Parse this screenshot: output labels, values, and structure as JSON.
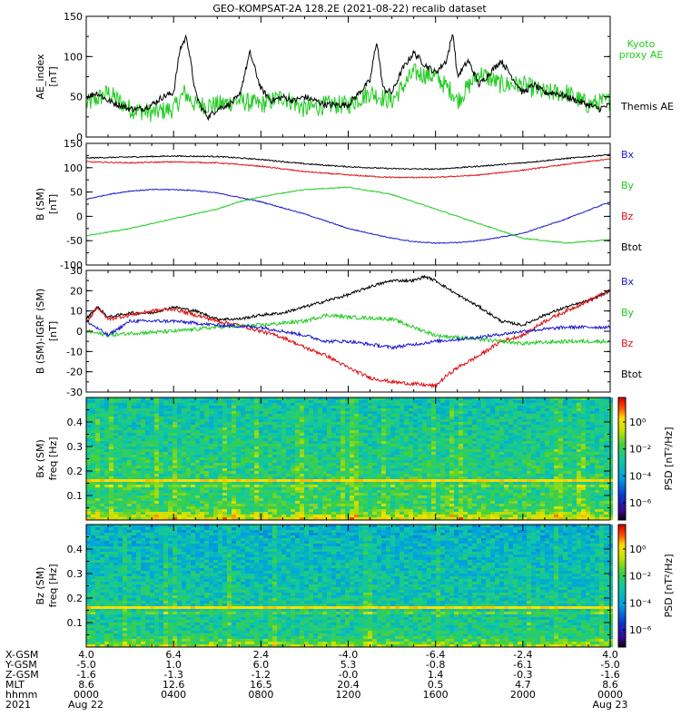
{
  "title": "GEO-KOMPSAT-2A 128.2E (2021-08-22) recalib dataset",
  "panels": {
    "ae": {
      "ylabel_lines": [
        "AE_index",
        "[nT]"
      ],
      "yticks": [
        "0",
        "50",
        "100",
        "150"
      ],
      "legend": {
        "kyoto_line1": "Kyoto",
        "kyoto_line2": "proxy AE",
        "themis": "Themis AE"
      },
      "colors": {
        "kyoto": "#22cc22",
        "themis": "#000000"
      }
    },
    "b_sm": {
      "ylabel_lines": [
        "B (SM)",
        "[nT]"
      ],
      "yticks": [
        "-100",
        "-50",
        "0",
        "50",
        "100",
        "150"
      ],
      "legend": [
        "Bx",
        "By",
        "Bz",
        "Btot"
      ],
      "colors": {
        "Bx": "#1a1acc",
        "By": "#22cc22",
        "Bz": "#dd1111",
        "Btot": "#000000"
      }
    },
    "b_igrf": {
      "ylabel_lines": [
        "B (SM)-IGRF (SM)",
        "[nT]"
      ],
      "yticks": [
        "-30",
        "-20",
        "-10",
        "0",
        "10",
        "20",
        "30"
      ],
      "legend": [
        "Bx",
        "By",
        "Bz",
        "Btot"
      ]
    },
    "spec_bx": {
      "ylabel_lines": [
        "Bx (SM)",
        "freq [Hz]"
      ],
      "yticks": [
        "0.1",
        "0.2",
        "0.3",
        "0.4"
      ],
      "cbar_label": "PSD [nT²/Hz]",
      "cbar_ticks": [
        "10⁰",
        "10⁻²",
        "10⁻⁴",
        "10⁻⁶"
      ]
    },
    "spec_bz": {
      "ylabel_lines": [
        "Bz (SM)",
        "freq [Hz]"
      ],
      "yticks": [
        "0.1",
        "0.2",
        "0.3",
        "0.4"
      ],
      "cbar_label": "PSD [nT²/Hz]",
      "cbar_ticks": [
        "10⁰",
        "10⁻²",
        "10⁻⁴",
        "10⁻⁶"
      ]
    }
  },
  "ephemeris": {
    "row_labels": [
      "X-GSM",
      "Y-GSM",
      "Z-GSM",
      "MLT",
      "hhmm",
      "2021"
    ],
    "columns": [
      [
        "4.0",
        "-5.0",
        "-1.6",
        "8.6",
        "0000",
        "Aug 22"
      ],
      [
        "6.4",
        "1.0",
        "-1.3",
        "12.6",
        "0400",
        ""
      ],
      [
        "2.4",
        "6.0",
        "-1.2",
        "16.5",
        "0800",
        ""
      ],
      [
        "-4.0",
        "5.3",
        "-0.0",
        "20.4",
        "1200",
        ""
      ],
      [
        "-6.4",
        "-0.8",
        "1.4",
        "0.5",
        "1600",
        ""
      ],
      [
        "-2.4",
        "-6.1",
        "-0.3",
        "4.7",
        "2000",
        ""
      ],
      [
        "4.0",
        "-5.0",
        "-1.6",
        "8.6",
        "0000",
        "Aug 23"
      ]
    ]
  },
  "chart_data": [
    {
      "type": "line",
      "x_unit": "hours since 2021-08-22 00:00",
      "xlim": [
        0,
        24
      ],
      "ylim": [
        0,
        150
      ],
      "series": [
        {
          "name": "Kyoto proxy AE",
          "x": [
            0,
            1,
            2,
            3,
            4,
            4.5,
            5,
            6,
            7,
            8,
            9,
            10,
            11,
            12,
            13,
            14,
            15,
            16,
            16.8,
            17,
            18,
            19,
            20,
            21,
            22,
            23,
            24
          ],
          "values": [
            40,
            55,
            35,
            30,
            35,
            55,
            40,
            40,
            45,
            40,
            50,
            35,
            40,
            40,
            55,
            45,
            80,
            75,
            55,
            45,
            80,
            65,
            65,
            55,
            55,
            40,
            45
          ]
        },
        {
          "name": "Themis AE",
          "x": [
            0,
            0.5,
            1,
            1.5,
            2,
            2.5,
            3,
            3.5,
            4,
            4.3,
            4.6,
            5,
            5.3,
            5.6,
            6,
            6.5,
            7,
            7.5,
            8,
            8.5,
            9,
            9.5,
            10,
            10.5,
            11,
            11.5,
            12,
            12.5,
            13,
            13.3,
            13.6,
            14,
            14.5,
            15,
            15.5,
            16,
            16.5,
            16.8,
            17,
            17.5,
            18,
            18.5,
            19,
            19.5,
            20,
            20.5,
            21,
            21.5,
            22,
            22.5,
            23,
            23.5,
            24
          ],
          "values": [
            50,
            55,
            45,
            40,
            35,
            35,
            40,
            50,
            55,
            110,
            125,
            55,
            35,
            25,
            35,
            40,
            50,
            105,
            60,
            45,
            50,
            45,
            50,
            45,
            40,
            40,
            40,
            55,
            70,
            120,
            60,
            55,
            85,
            105,
            90,
            80,
            95,
            130,
            75,
            95,
            65,
            80,
            95,
            75,
            55,
            65,
            55,
            55,
            50,
            45,
            40,
            35,
            40
          ]
        }
      ]
    },
    {
      "type": "line",
      "x_unit": "hours since 2021-08-22 00:00",
      "xlim": [
        0,
        24
      ],
      "ylim": [
        -100,
        150
      ],
      "series": [
        {
          "name": "Btot",
          "x": [
            0,
            2,
            4,
            6,
            8,
            10,
            12,
            14,
            16,
            18,
            20,
            22,
            24
          ],
          "values": [
            120,
            122,
            124,
            123,
            117,
            108,
            102,
            98,
            97,
            103,
            110,
            119,
            127
          ]
        },
        {
          "name": "Bz",
          "x": [
            0,
            2,
            4,
            6,
            8,
            10,
            12,
            14,
            16,
            18,
            20,
            22,
            24
          ],
          "values": [
            112,
            110,
            112,
            110,
            103,
            92,
            85,
            80,
            80,
            85,
            95,
            107,
            118
          ]
        },
        {
          "name": "Bx",
          "x": [
            0,
            1,
            2,
            3,
            4,
            5,
            6,
            8,
            10,
            12,
            14,
            15,
            16,
            17,
            18,
            20,
            22,
            24
          ],
          "values": [
            35,
            45,
            52,
            55,
            55,
            53,
            48,
            30,
            5,
            -25,
            -45,
            -52,
            -55,
            -54,
            -50,
            -35,
            -5,
            30
          ]
        },
        {
          "name": "By",
          "x": [
            0,
            2,
            4,
            6,
            7,
            8,
            9,
            10,
            12,
            14,
            16,
            18,
            20,
            22,
            24
          ],
          "values": [
            -40,
            -25,
            -5,
            15,
            30,
            40,
            48,
            55,
            60,
            45,
            15,
            -15,
            -45,
            -55,
            -48
          ]
        }
      ]
    },
    {
      "type": "line",
      "x_unit": "hours since 2021-08-22 00:00",
      "xlim": [
        0,
        24
      ],
      "ylim": [
        -30,
        30
      ],
      "series": [
        {
          "name": "Btot",
          "x": [
            0,
            0.5,
            1,
            2,
            3,
            4,
            5,
            6,
            7,
            8,
            9,
            10,
            11,
            12,
            13,
            14,
            15,
            15.5,
            16,
            17,
            18,
            19,
            20,
            21,
            22,
            23,
            24
          ],
          "values": [
            6,
            12,
            7,
            9,
            9,
            12,
            10,
            6,
            6,
            8,
            9,
            12,
            15,
            18,
            22,
            25,
            25,
            27,
            25,
            18,
            12,
            5,
            3,
            8,
            12,
            15,
            20
          ]
        },
        {
          "name": "Bz",
          "x": [
            0,
            0.5,
            1,
            2,
            3,
            4,
            5,
            6,
            7,
            8,
            9,
            10,
            11,
            12,
            13,
            14,
            15,
            16,
            16.5,
            17,
            18,
            19,
            20,
            21,
            22,
            23,
            24
          ],
          "values": [
            4,
            12,
            6,
            8,
            10,
            11,
            8,
            5,
            3,
            0,
            -3,
            -8,
            -12,
            -18,
            -23,
            -25,
            -26,
            -27,
            -22,
            -18,
            -12,
            -5,
            -2,
            5,
            10,
            15,
            20
          ]
        },
        {
          "name": "By",
          "x": [
            0,
            1,
            2,
            4,
            6,
            8,
            10,
            11,
            12,
            14,
            16,
            18,
            20,
            22,
            24
          ],
          "values": [
            0,
            -2,
            -1,
            0,
            2,
            3,
            5,
            8,
            7,
            6,
            -2,
            -4,
            -6,
            -5,
            -5
          ]
        },
        {
          "name": "Bx",
          "x": [
            0,
            1,
            2,
            4,
            6,
            8,
            10,
            11,
            12,
            14,
            16,
            18,
            20,
            22,
            24
          ],
          "values": [
            5,
            -2,
            5,
            5,
            3,
            2,
            -2,
            -5,
            -5,
            -8,
            -5,
            -3,
            0,
            2,
            2
          ]
        }
      ]
    },
    {
      "type": "heatmap",
      "name": "Bx (SM) spectrogram",
      "x_unit": "hours since 2021-08-22 00:00",
      "xlim": [
        0,
        24
      ],
      "ylim": [
        0,
        0.5
      ],
      "features": {
        "narrowband_line_hz": 0.17,
        "low_freq_enhancement_hz": [
          0,
          0.05
        ]
      }
    },
    {
      "type": "heatmap",
      "name": "Bz (SM) spectrogram",
      "x_unit": "hours since 2021-08-22 00:00",
      "xlim": [
        0,
        24
      ],
      "ylim": [
        0,
        0.5
      ],
      "features": {
        "narrowband_line_hz": 0.17,
        "low_freq_enhancement_hz": [
          0,
          0.05
        ]
      }
    }
  ]
}
